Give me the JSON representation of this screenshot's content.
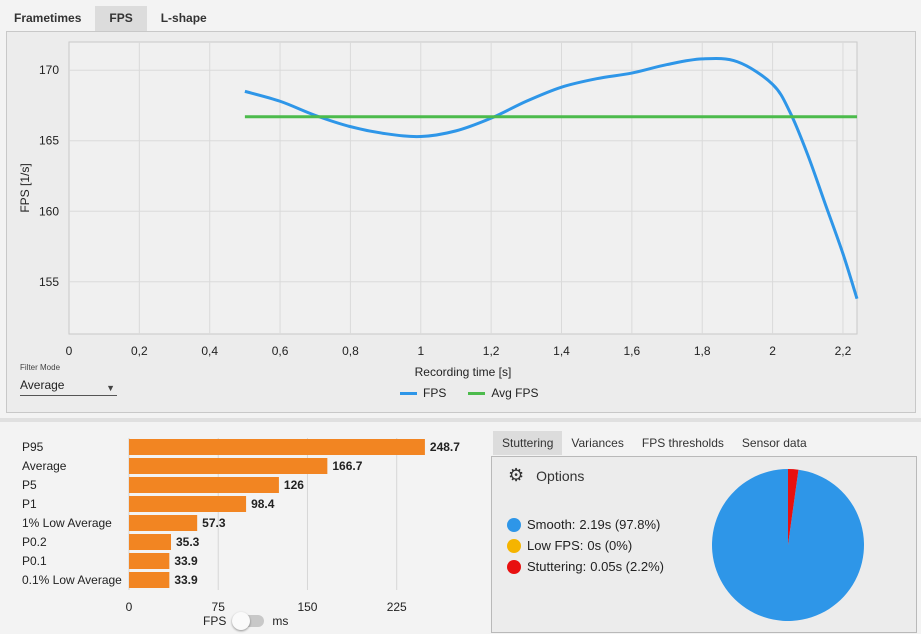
{
  "tabs": [
    {
      "label": "Frametimes"
    },
    {
      "label": "FPS"
    },
    {
      "label": "L-shape"
    }
  ],
  "filter": {
    "label": "Filter Mode",
    "value": "Average"
  },
  "legend": [
    {
      "label": "FPS",
      "color": "#2e96e8"
    },
    {
      "label": "Avg FPS",
      "color": "#4cbb4c"
    }
  ],
  "chart_data": [
    {
      "type": "line",
      "xlabel": "Recording time [s]",
      "ylabel": "FPS [1/s]",
      "xlim": [
        0,
        2.24
      ],
      "ylim": [
        151.3,
        172.0
      ],
      "xticks": [
        0,
        0.2,
        0.4,
        0.6,
        0.8,
        1,
        1.2,
        1.4,
        1.6,
        1.8,
        2,
        2.2
      ],
      "xtick_labels": [
        "0",
        "0,2",
        "0,4",
        "0,6",
        "0,8",
        "1",
        "1,2",
        "1,4",
        "1,6",
        "1,8",
        "2",
        "2,2"
      ],
      "yticks": [
        155,
        160,
        165,
        170
      ],
      "grid": true,
      "legend_position": "bottom-center",
      "series": [
        {
          "name": "FPS",
          "color": "#2e96e8",
          "x": [
            0.5,
            0.6,
            0.7,
            0.8,
            0.9,
            1.0,
            1.1,
            1.2,
            1.3,
            1.4,
            1.5,
            1.6,
            1.7,
            1.8,
            1.9,
            2.0,
            2.05,
            2.1,
            2.15,
            2.2,
            2.24
          ],
          "y": [
            168.5,
            167.8,
            166.8,
            166.0,
            165.5,
            165.3,
            165.7,
            166.6,
            167.8,
            168.8,
            169.4,
            169.8,
            170.4,
            170.8,
            170.6,
            169.0,
            167.0,
            164.0,
            160.5,
            157.0,
            153.8
          ]
        },
        {
          "name": "Avg FPS",
          "color": "#4cbb4c",
          "x": [
            0.5,
            2.24
          ],
          "y": [
            166.7,
            166.7
          ]
        }
      ]
    },
    {
      "type": "bar",
      "orientation": "horizontal",
      "categories": [
        "P95",
        "Average",
        "P5",
        "P1",
        "1% Low Average",
        "P0.2",
        "P0.1",
        "0.1% Low Average"
      ],
      "values": [
        248.7,
        166.7,
        126,
        98.4,
        57.3,
        35.3,
        33.9,
        33.9
      ],
      "value_labels": [
        "248.7",
        "166.7",
        "126",
        "98.4",
        "57.3",
        "35.3",
        "33.9",
        "33.9"
      ],
      "xlim": [
        0,
        295
      ],
      "xticks": [
        0,
        75,
        150,
        225
      ],
      "color": "#f28522",
      "grid": true
    },
    {
      "type": "pie",
      "categories": [
        "Smooth",
        "Low FPS",
        "Stuttering"
      ],
      "values": [
        97.8,
        0,
        2.2
      ],
      "colors": [
        "#2e96e8",
        "#f5b400",
        "#e81010"
      ]
    }
  ],
  "toggle": {
    "left": "FPS",
    "right": "ms"
  },
  "right_tabs": [
    {
      "label": "Stuttering"
    },
    {
      "label": "Variances"
    },
    {
      "label": "FPS thresholds"
    },
    {
      "label": "Sensor data"
    }
  ],
  "options_label": "Options",
  "stats": [
    {
      "label": "Smooth:",
      "value": "2.19s (97.8%)",
      "color": "#2e96e8"
    },
    {
      "label": "Low FPS:",
      "value": "0s (0%)",
      "color": "#f5b400"
    },
    {
      "label": "Stuttering:",
      "value": "0.05s (2.2%)",
      "color": "#e81010"
    }
  ]
}
